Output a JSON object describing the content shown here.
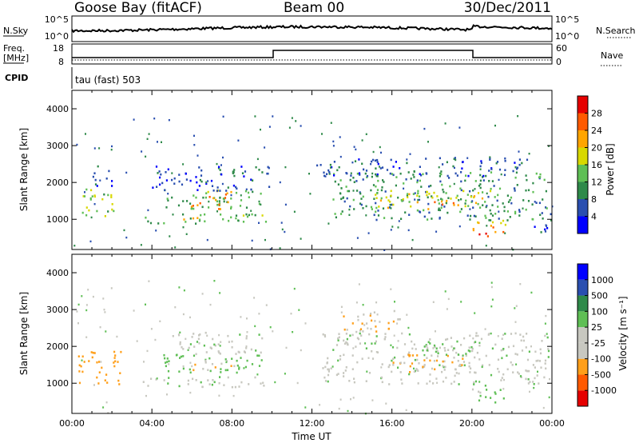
{
  "header": {
    "station": "Goose Bay (fitACF)",
    "beam": "Beam 00",
    "date": "30/Dec/2011"
  },
  "strip": {
    "nsky_label": "N.Sky",
    "nsearch_label": "N.Search",
    "noise_ticks": [
      "10^5",
      "10^0"
    ],
    "freq_label_1": "Freq.",
    "freq_label_2": "[MHz]",
    "freq_ticks": [
      "18",
      "8"
    ],
    "nave_label": "Nave",
    "nave_ticks": [
      "60",
      "0"
    ],
    "cpid_label": "CPID",
    "cpid_value": "tau (fast) 503"
  },
  "colors": {
    "power": [
      "#0000ff",
      "#2a4fb0",
      "#2f8a4a",
      "#5fbf55",
      "#d8d800",
      "#ffa500",
      "#ff5a00",
      "#e60000"
    ],
    "velocity": [
      "#e60000",
      "#ff5a00",
      "#ff9f1a",
      "#c8c8c0",
      "#c8c8c0",
      "#5fbf55",
      "#2f8a4a",
      "#2a4fb0",
      "#0000ff"
    ]
  },
  "chart_data": [
    {
      "type": "heatmap",
      "name": "power",
      "xlabel": "",
      "ylabel": "Slant Range [km]",
      "xlim": [
        "00:00",
        "24:00"
      ],
      "ylim": [
        180,
        4500
      ],
      "y_ticks": [
        1000,
        2000,
        3000,
        4000
      ],
      "colorbar_label": "Power [dB]",
      "colorbar_ticks": [
        4,
        8,
        12,
        16,
        20,
        24,
        28
      ],
      "colorbar_range": [
        0,
        32
      ],
      "regions": [
        {
          "t0": 0.5,
          "t1": 2.3,
          "r0": 1100,
          "r1": 1900,
          "v": 14
        },
        {
          "t0": 1.0,
          "t1": 2.0,
          "r0": 1900,
          "r1": 2500,
          "v": 6
        },
        {
          "t0": 3.5,
          "t1": 9.7,
          "r0": 900,
          "r1": 1200,
          "v": 13
        },
        {
          "t0": 4.5,
          "t1": 9.5,
          "r0": 1300,
          "r1": 1800,
          "v": 12
        },
        {
          "t0": 5.8,
          "t1": 7.8,
          "r0": 1300,
          "r1": 1700,
          "v": 24
        },
        {
          "t0": 6.5,
          "t1": 8.2,
          "r0": 1700,
          "r1": 1900,
          "v": 18
        },
        {
          "t0": 4.0,
          "t1": 10.0,
          "r0": 1800,
          "r1": 2500,
          "v": 6
        },
        {
          "t0": 5.5,
          "t1": 6.5,
          "r0": 950,
          "r1": 1150,
          "v": 22
        },
        {
          "t0": 13.0,
          "t1": 23.8,
          "r0": 1000,
          "r1": 2300,
          "v": 10
        },
        {
          "t0": 15.0,
          "t1": 21.0,
          "r0": 1300,
          "r1": 1800,
          "v": 17
        },
        {
          "t0": 17.8,
          "t1": 19.5,
          "r0": 1400,
          "r1": 1600,
          "v": 24
        },
        {
          "t0": 12.0,
          "t1": 23.0,
          "r0": 2200,
          "r1": 2700,
          "v": 6
        },
        {
          "t0": 20.0,
          "t1": 21.8,
          "r0": 600,
          "r1": 1000,
          "v": 22
        },
        {
          "t0": 20.0,
          "t1": 20.8,
          "r0": 450,
          "r1": 650,
          "v": 28
        },
        {
          "t0": 23.0,
          "t1": 24.0,
          "r0": 600,
          "r1": 1200,
          "v": 6
        }
      ]
    },
    {
      "type": "heatmap",
      "name": "velocity",
      "xlabel": "Time UT",
      "ylabel": "Slant Range [km]",
      "xlim": [
        "00:00",
        "24:00"
      ],
      "ylim": [
        180,
        4500
      ],
      "y_ticks": [
        1000,
        2000,
        3000,
        4000
      ],
      "x_ticks": [
        "00:00",
        "04:00",
        "08:00",
        "12:00",
        "16:00",
        "20:00",
        "00:00"
      ],
      "colorbar_label": "Velocity [m s⁻¹]",
      "colorbar_ticks": [
        1000,
        500,
        100,
        25,
        -25,
        -100,
        -500,
        -1000
      ],
      "regions": [
        {
          "t0": 0.3,
          "t1": 2.5,
          "r0": 1000,
          "r1": 1900,
          "v": -300
        },
        {
          "t0": 3.5,
          "t1": 9.8,
          "r0": 900,
          "r1": 1200,
          "v": 0
        },
        {
          "t0": 4.5,
          "t1": 9.5,
          "r0": 1300,
          "r1": 1800,
          "v": 60
        },
        {
          "t0": 6.0,
          "t1": 8.0,
          "r0": 1350,
          "r1": 1650,
          "v": -80
        },
        {
          "t0": 5.0,
          "t1": 9.8,
          "r0": 1800,
          "r1": 2400,
          "v": 0
        },
        {
          "t0": 12.5,
          "t1": 23.8,
          "r0": 1000,
          "r1": 2400,
          "v": 0
        },
        {
          "t0": 16.0,
          "t1": 19.5,
          "r0": 1300,
          "r1": 1800,
          "v": -120
        },
        {
          "t0": 17.5,
          "t1": 20.0,
          "r0": 1800,
          "r1": 2100,
          "v": 60
        },
        {
          "t0": 20.0,
          "t1": 21.8,
          "r0": 500,
          "r1": 1000,
          "v": 50
        },
        {
          "t0": 13.5,
          "t1": 16.5,
          "r0": 2400,
          "r1": 3000,
          "v": -80
        }
      ]
    }
  ]
}
